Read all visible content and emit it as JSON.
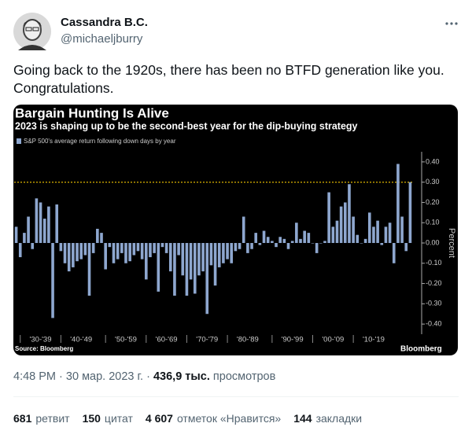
{
  "tweet": {
    "author": "Cassandra B.C.",
    "handle": "@michaeljburry",
    "text": "Going back to the 1920s, there has been no BTFD generation like you. Congratulations.",
    "time": "4:48 PM",
    "separator": "·",
    "date": "30 мар. 2023 г.",
    "views": "436,9 тыс.",
    "views_label": "просмотров",
    "stats": [
      {
        "count": "681",
        "label": "ретвит"
      },
      {
        "count": "150",
        "label": "цитат"
      },
      {
        "count": "4 607",
        "label": "отметок «Нравится»"
      },
      {
        "count": "144",
        "label": "закладки"
      }
    ]
  },
  "chart_data": {
    "type": "bar",
    "title": "Bargain Hunting Is Alive",
    "subtitle": "2023 is shaping up to be the second-best year for the dip-buying strategy",
    "series": [
      {
        "name": "S&P 500's average return following down days by year",
        "color": "#8ea7cf",
        "values": [
          0.08,
          -0.07,
          0.05,
          0.13,
          -0.03,
          0.22,
          0.2,
          0.12,
          0.18,
          -0.37,
          0.19,
          -0.04,
          -0.1,
          -0.14,
          -0.12,
          -0.09,
          -0.08,
          -0.06,
          -0.26,
          -0.05,
          0.07,
          0.05,
          -0.13,
          -0.02,
          -0.1,
          -0.08,
          -0.05,
          -0.1,
          -0.09,
          -0.06,
          -0.04,
          -0.08,
          -0.18,
          -0.07,
          -0.05,
          -0.24,
          -0.02,
          -0.05,
          -0.14,
          -0.26,
          -0.06,
          -0.16,
          -0.26,
          -0.18,
          -0.25,
          -0.16,
          -0.14,
          -0.35,
          -0.11,
          -0.21,
          -0.12,
          -0.1,
          -0.08,
          -0.1,
          -0.04,
          -0.03,
          0.13,
          -0.05,
          -0.03,
          0.05,
          -0.01,
          0.06,
          0.03,
          0.01,
          -0.02,
          0.03,
          0.02,
          -0.03,
          0.01,
          0.1,
          0.02,
          0.06,
          0.05,
          0.0,
          -0.05,
          0.0,
          0.01,
          0.25,
          0.08,
          0.11,
          0.18,
          0.2,
          0.29,
          0.13,
          0.04,
          0.0,
          0.02,
          0.15,
          0.08,
          0.11,
          -0.01,
          0.08,
          0.1,
          -0.1,
          0.39,
          0.13,
          -0.04,
          0.3
        ]
      }
    ],
    "categories": [
      null,
      null,
      null,
      null,
      null,
      null,
      "'30-'39",
      null,
      null,
      null,
      null,
      null,
      null,
      null,
      null,
      null,
      "'40-'49",
      null,
      null,
      null,
      null,
      null,
      null,
      null,
      null,
      null,
      null,
      "'50-'59",
      null,
      null,
      null,
      null,
      null,
      null,
      null,
      null,
      null,
      "'60-'69",
      null,
      null,
      null,
      null,
      null,
      null,
      null,
      null,
      null,
      "'70-'79",
      null,
      null,
      null,
      null,
      null,
      null,
      null,
      null,
      null,
      "'80-'89",
      null,
      null,
      null,
      null,
      null,
      null,
      null,
      null,
      null,
      null,
      "'90-'99",
      null,
      null,
      null,
      null,
      null,
      null,
      null,
      null,
      null,
      "'00-'09",
      null,
      null,
      null,
      null,
      null,
      null,
      null,
      null,
      null,
      "'10-'19",
      null,
      null,
      null,
      null,
      null,
      null,
      null,
      null,
      null
    ],
    "ylim": [
      -0.45,
      0.45
    ],
    "yticks": [
      {
        "value": 0.4,
        "label": "0.40"
      },
      {
        "value": 0.3,
        "label": "0.30"
      },
      {
        "value": 0.2,
        "label": "0.20"
      },
      {
        "value": 0.1,
        "label": "0.10"
      },
      {
        "value": 0,
        "label": "0.00"
      },
      {
        "value": -0.1,
        "label": "-0.10"
      },
      {
        "value": -0.2,
        "label": "-0.20"
      },
      {
        "value": -0.3,
        "label": "-0.30"
      },
      {
        "value": -0.4,
        "label": "-0.40"
      }
    ],
    "ylabel": "Percent",
    "reference_line": {
      "value": 0.3,
      "color": "#c9a400"
    },
    "source": "Source: Bloomberg",
    "brand": "Bloomberg"
  }
}
